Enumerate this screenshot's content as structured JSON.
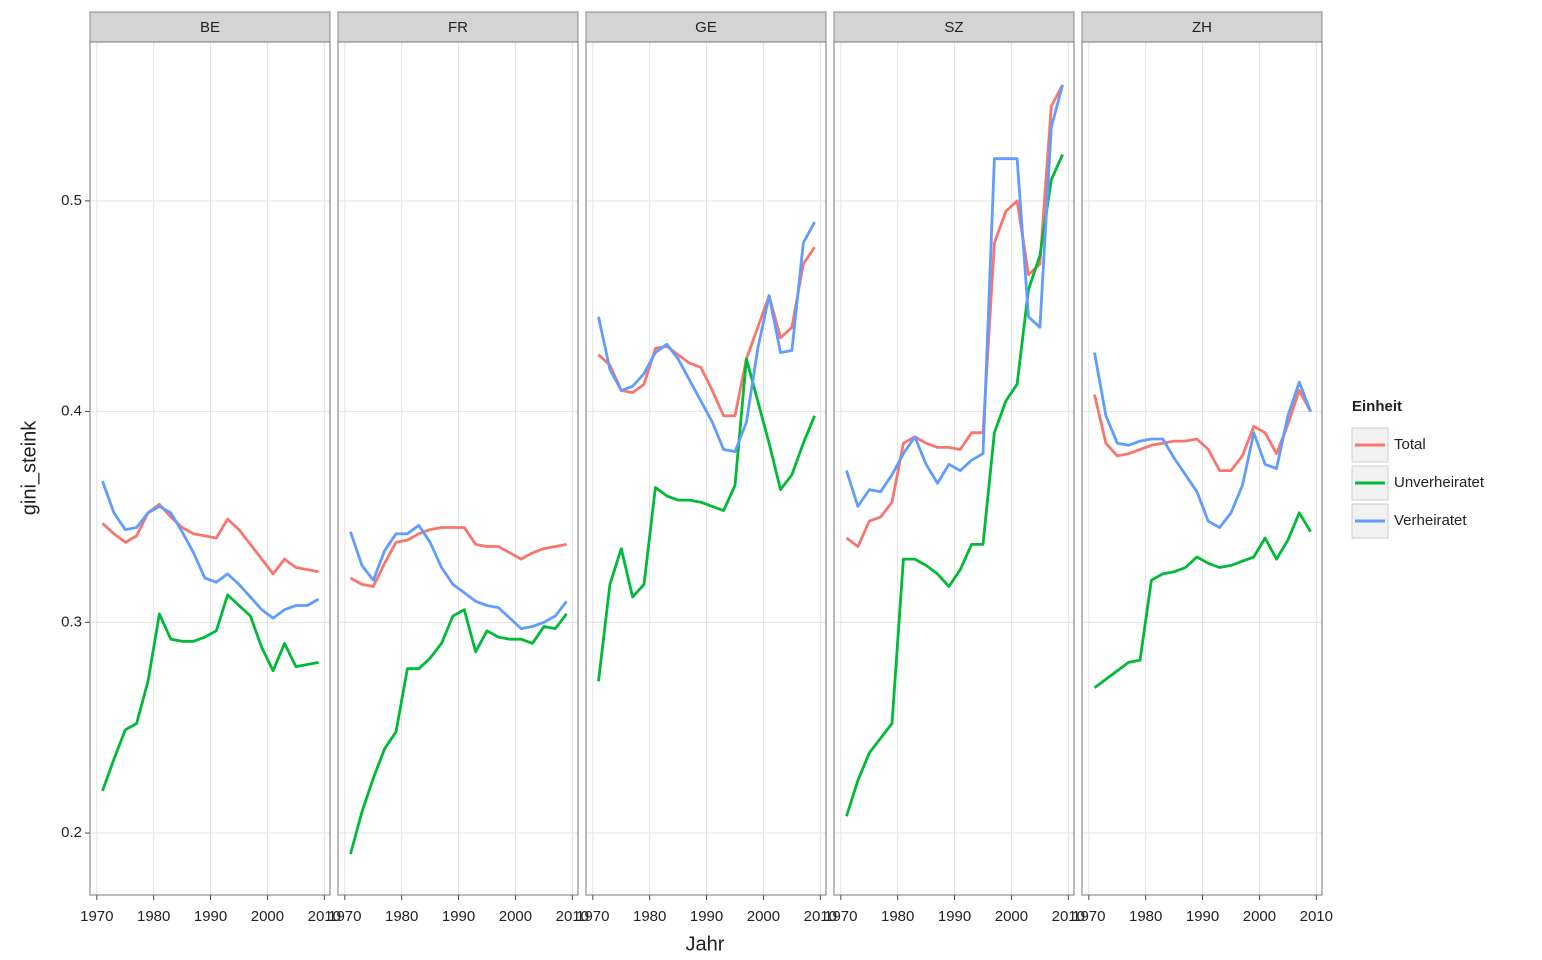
{
  "chart_data": [
    {
      "type": "line",
      "title": "BE",
      "x": [
        1971,
        1973,
        1975,
        1977,
        1979,
        1981,
        1983,
        1985,
        1987,
        1989,
        1991,
        1993,
        1995,
        1997,
        1999,
        2001,
        2003,
        2005,
        2007,
        2009
      ],
      "series": [
        {
          "name": "Total",
          "color": "#F8766D",
          "values": [
            0.347,
            0.342,
            0.338,
            0.341,
            0.352,
            0.356,
            0.35,
            0.345,
            0.342,
            0.341,
            0.34,
            0.349,
            0.344,
            0.337,
            0.33,
            0.323,
            0.33,
            0.326,
            0.325,
            0.324
          ]
        },
        {
          "name": "Unverheiratet",
          "color": "#00BA38",
          "values": [
            0.22,
            0.235,
            0.249,
            0.252,
            0.272,
            0.304,
            0.292,
            0.291,
            0.291,
            0.293,
            0.296,
            0.313,
            0.308,
            0.303,
            0.288,
            0.277,
            0.29,
            0.279,
            0.28,
            0.281
          ]
        },
        {
          "name": "Verheiratet",
          "color": "#619CFF",
          "values": [
            0.367,
            0.352,
            0.344,
            0.345,
            0.352,
            0.355,
            0.352,
            0.343,
            0.333,
            0.321,
            0.319,
            0.323,
            0.318,
            0.312,
            0.306,
            0.302,
            0.306,
            0.308,
            0.308,
            0.311
          ]
        }
      ],
      "xlim": [
        1968.8,
        2011
      ],
      "xticks": [
        1970,
        1980,
        1990,
        2000,
        2010
      ],
      "ylim": [
        0.1706,
        0.5754
      ],
      "yticks": [
        0.2,
        0.3,
        0.4,
        0.5
      ],
      "grid": true
    },
    {
      "type": "line",
      "title": "FR",
      "x": [
        1971,
        1973,
        1975,
        1977,
        1979,
        1981,
        1983,
        1985,
        1987,
        1989,
        1991,
        1993,
        1995,
        1997,
        1999,
        2001,
        2003,
        2005,
        2007,
        2009
      ],
      "series": [
        {
          "name": "Total",
          "color": "#F8766D",
          "values": [
            0.321,
            0.318,
            0.317,
            0.328,
            0.338,
            0.339,
            0.342,
            0.344,
            0.345,
            0.345,
            0.345,
            0.337,
            0.336,
            0.336,
            0.333,
            0.33,
            0.333,
            0.335,
            0.336,
            0.337
          ]
        },
        {
          "name": "Unverheiratet",
          "color": "#00BA38",
          "values": [
            0.19,
            0.21,
            0.226,
            0.24,
            0.248,
            0.278,
            0.278,
            0.283,
            0.29,
            0.303,
            0.306,
            0.286,
            0.296,
            0.293,
            0.292,
            0.292,
            0.29,
            0.298,
            0.297,
            0.304
          ]
        },
        {
          "name": "Verheiratet",
          "color": "#619CFF",
          "values": [
            0.343,
            0.327,
            0.32,
            0.334,
            0.342,
            0.342,
            0.346,
            0.338,
            0.326,
            0.318,
            0.314,
            0.31,
            0.308,
            0.307,
            0.302,
            0.297,
            0.298,
            0.3,
            0.303,
            0.31
          ]
        }
      ],
      "xlim": [
        1968.8,
        2011
      ],
      "xticks": [
        1970,
        1980,
        1990,
        2000,
        2010
      ],
      "ylim": [
        0.1706,
        0.5754
      ],
      "yticks": [
        0.2,
        0.3,
        0.4,
        0.5
      ],
      "grid": true
    },
    {
      "type": "line",
      "title": "GE",
      "x": [
        1971,
        1973,
        1975,
        1977,
        1979,
        1981,
        1983,
        1985,
        1987,
        1989,
        1991,
        1993,
        1995,
        1997,
        1999,
        2001,
        2003,
        2005,
        2007,
        2009
      ],
      "series": [
        {
          "name": "Total",
          "color": "#F8766D",
          "values": [
            0.427,
            0.422,
            0.41,
            0.409,
            0.413,
            0.43,
            0.431,
            0.427,
            0.423,
            0.421,
            0.41,
            0.398,
            0.398,
            0.425,
            0.44,
            0.455,
            0.435,
            0.44,
            0.47,
            0.478
          ]
        },
        {
          "name": "Unverheiratet",
          "color": "#00BA38",
          "values": [
            0.272,
            0.318,
            0.335,
            0.312,
            0.318,
            0.364,
            0.36,
            0.358,
            0.358,
            0.357,
            0.355,
            0.353,
            0.365,
            0.425,
            0.405,
            0.385,
            0.363,
            0.37,
            0.385,
            0.398
          ]
        },
        {
          "name": "Verheiratet",
          "color": "#619CFF",
          "values": [
            0.445,
            0.42,
            0.41,
            0.412,
            0.418,
            0.428,
            0.432,
            0.425,
            0.415,
            0.405,
            0.395,
            0.382,
            0.381,
            0.395,
            0.43,
            0.455,
            0.428,
            0.429,
            0.48,
            0.49
          ]
        }
      ],
      "xlim": [
        1968.8,
        2011
      ],
      "xticks": [
        1970,
        1980,
        1990,
        2000,
        2010
      ],
      "ylim": [
        0.1706,
        0.5754
      ],
      "yticks": [
        0.2,
        0.3,
        0.4,
        0.5
      ],
      "grid": true
    },
    {
      "type": "line",
      "title": "SZ",
      "x": [
        1971,
        1973,
        1975,
        1977,
        1979,
        1981,
        1983,
        1985,
        1987,
        1989,
        1991,
        1993,
        1995,
        1997,
        1999,
        2001,
        2003,
        2005,
        2007,
        2009
      ],
      "series": [
        {
          "name": "Total",
          "color": "#F8766D",
          "values": [
            0.34,
            0.336,
            0.348,
            0.35,
            0.357,
            0.385,
            0.388,
            0.385,
            0.383,
            0.383,
            0.382,
            0.39,
            0.39,
            0.48,
            0.495,
            0.5,
            0.465,
            0.47,
            0.545,
            0.555
          ]
        },
        {
          "name": "Unverheiratet",
          "color": "#00BA38",
          "values": [
            0.208,
            0.225,
            0.238,
            0.245,
            0.252,
            0.33,
            0.33,
            0.327,
            0.323,
            0.317,
            0.325,
            0.337,
            0.337,
            0.39,
            0.405,
            0.413,
            0.458,
            0.474,
            0.51,
            0.522
          ]
        },
        {
          "name": "Verheiratet",
          "color": "#619CFF",
          "values": [
            0.372,
            0.355,
            0.363,
            0.362,
            0.37,
            0.38,
            0.388,
            0.375,
            0.366,
            0.375,
            0.372,
            0.377,
            0.38,
            0.52,
            0.52,
            0.52,
            0.445,
            0.44,
            0.535,
            0.555
          ]
        }
      ],
      "xlim": [
        1968.8,
        2011
      ],
      "xticks": [
        1970,
        1980,
        1990,
        2000,
        2010
      ],
      "ylim": [
        0.1706,
        0.5754
      ],
      "yticks": [
        0.2,
        0.3,
        0.4,
        0.5
      ],
      "grid": true
    },
    {
      "type": "line",
      "title": "ZH",
      "x": [
        1971,
        1973,
        1975,
        1977,
        1979,
        1981,
        1983,
        1985,
        1987,
        1989,
        1991,
        1993,
        1995,
        1997,
        1999,
        2001,
        2003,
        2005,
        2007,
        2009
      ],
      "series": [
        {
          "name": "Total",
          "color": "#F8766D",
          "values": [
            0.408,
            0.385,
            0.379,
            0.38,
            0.382,
            0.384,
            0.385,
            0.386,
            0.386,
            0.387,
            0.382,
            0.372,
            0.372,
            0.379,
            0.393,
            0.39,
            0.38,
            0.394,
            0.41,
            0.4
          ]
        },
        {
          "name": "Unverheiratet",
          "color": "#00BA38",
          "values": [
            0.269,
            0.273,
            0.277,
            0.281,
            0.282,
            0.32,
            0.323,
            0.324,
            0.326,
            0.331,
            0.328,
            0.326,
            0.327,
            0.329,
            0.331,
            0.34,
            0.33,
            0.339,
            0.352,
            0.343
          ]
        },
        {
          "name": "Verheiratet",
          "color": "#619CFF",
          "values": [
            0.428,
            0.398,
            0.385,
            0.384,
            0.386,
            0.387,
            0.387,
            0.378,
            0.37,
            0.362,
            0.348,
            0.345,
            0.352,
            0.365,
            0.39,
            0.375,
            0.373,
            0.398,
            0.414,
            0.4
          ]
        }
      ],
      "xlim": [
        1968.8,
        2011
      ],
      "xticks": [
        1970,
        1980,
        1990,
        2000,
        2010
      ],
      "ylim": [
        0.1706,
        0.5754
      ],
      "yticks": [
        0.2,
        0.3,
        0.4,
        0.5
      ],
      "grid": true
    }
  ],
  "axes": {
    "xlabel": "Jahr",
    "ylabel": "gini_steink"
  },
  "legend": {
    "title": "Einheit",
    "position": "right"
  }
}
